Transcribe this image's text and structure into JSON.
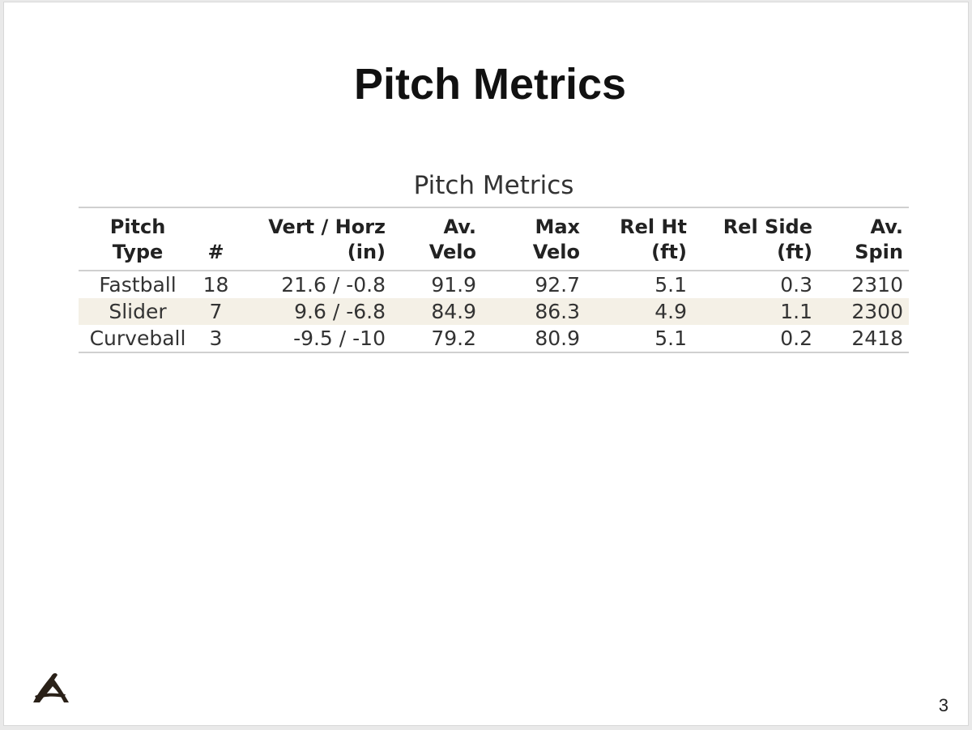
{
  "slide": {
    "title": "Pitch Metrics",
    "page_number": "3"
  },
  "table": {
    "caption": "Pitch Metrics",
    "header": [
      [
        "Pitch",
        "Type"
      ],
      [
        "#"
      ],
      [
        "Vert / Horz",
        "(in)"
      ],
      [
        "Av.",
        "Velo"
      ],
      [
        "Max",
        "Velo"
      ],
      [
        "Rel Ht",
        "(ft)"
      ],
      [
        "Rel Side",
        "(ft)"
      ],
      [
        "Av.",
        "Spin"
      ]
    ],
    "rows": [
      [
        "Fastball",
        18,
        "21.6 / -0.8",
        91.9,
        92.7,
        5.1,
        0.3,
        2310
      ],
      [
        "Slider",
        7,
        "9.6 / -6.8",
        84.9,
        86.3,
        4.9,
        1.1,
        2300
      ],
      [
        "Curveball",
        3,
        "-9.5 / -10",
        79.2,
        80.9,
        5.1,
        0.2,
        2418
      ]
    ]
  }
}
